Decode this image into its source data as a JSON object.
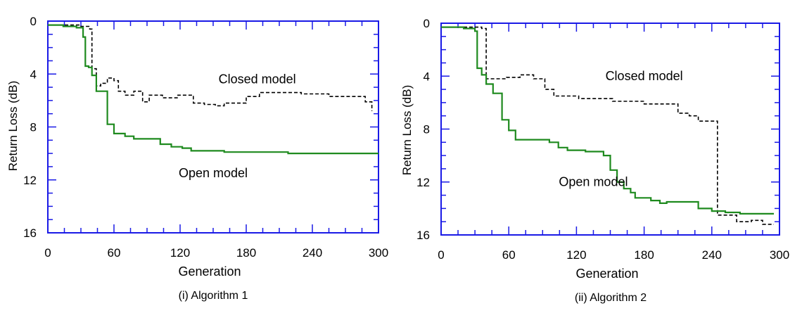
{
  "chart_data": [
    {
      "type": "line",
      "caption": "(i) Algorithm 1",
      "xlabel": "Generation",
      "ylabel": "Return Loss (dB)",
      "xlim": [
        0,
        300
      ],
      "ylim": [
        0,
        16
      ],
      "y_inverted": true,
      "xticks": [
        "0",
        "60",
        "120",
        "180",
        "240",
        "300"
      ],
      "yticks": [
        "0",
        "4",
        "8",
        "12",
        "16"
      ],
      "annotations": [
        {
          "text": "Closed model",
          "x": 190,
          "y": 4.7
        },
        {
          "text": "Open model",
          "x": 150,
          "y": 11.8
        }
      ],
      "series": [
        {
          "name": "Closed model",
          "color": "#000000",
          "dash": true,
          "points": [
            [
              0,
              0.3
            ],
            [
              30,
              0.3
            ],
            [
              30,
              0.4
            ],
            [
              38,
              0.4
            ],
            [
              38,
              0.6
            ],
            [
              40,
              0.6
            ],
            [
              40,
              3.6
            ],
            [
              44,
              3.6
            ],
            [
              44,
              4.9
            ],
            [
              48,
              4.9
            ],
            [
              48,
              4.7
            ],
            [
              54,
              4.7
            ],
            [
              54,
              4.3
            ],
            [
              60,
              4.3
            ],
            [
              60,
              4.5
            ],
            [
              64,
              4.5
            ],
            [
              64,
              5.3
            ],
            [
              70,
              5.3
            ],
            [
              70,
              5.6
            ],
            [
              78,
              5.6
            ],
            [
              78,
              5.3
            ],
            [
              86,
              5.3
            ],
            [
              86,
              6.1
            ],
            [
              92,
              6.1
            ],
            [
              92,
              5.6
            ],
            [
              104,
              5.6
            ],
            [
              104,
              5.8
            ],
            [
              118,
              5.8
            ],
            [
              118,
              5.6
            ],
            [
              132,
              5.6
            ],
            [
              132,
              6.2
            ],
            [
              142,
              6.2
            ],
            [
              142,
              6.3
            ],
            [
              152,
              6.3
            ],
            [
              152,
              6.4
            ],
            [
              160,
              6.4
            ],
            [
              160,
              6.2
            ],
            [
              180,
              6.2
            ],
            [
              180,
              5.7
            ],
            [
              192,
              5.7
            ],
            [
              192,
              5.4
            ],
            [
              230,
              5.4
            ],
            [
              230,
              5.5
            ],
            [
              255,
              5.5
            ],
            [
              255,
              5.7
            ],
            [
              288,
              5.7
            ],
            [
              288,
              6.1
            ],
            [
              294,
              6.1
            ],
            [
              294,
              6.8
            ]
          ]
        },
        {
          "name": "Open model",
          "color": "#1e8a1e",
          "dash": false,
          "points": [
            [
              0,
              0.3
            ],
            [
              14,
              0.3
            ],
            [
              14,
              0.4
            ],
            [
              26,
              0.4
            ],
            [
              26,
              0.5
            ],
            [
              32,
              0.5
            ],
            [
              32,
              1.2
            ],
            [
              34,
              1.2
            ],
            [
              34,
              3.4
            ],
            [
              37,
              3.4
            ],
            [
              37,
              3.5
            ],
            [
              40,
              3.5
            ],
            [
              40,
              4.1
            ],
            [
              44,
              4.1
            ],
            [
              44,
              5.3
            ],
            [
              54,
              5.3
            ],
            [
              54,
              7.8
            ],
            [
              60,
              7.8
            ],
            [
              60,
              8.5
            ],
            [
              70,
              8.5
            ],
            [
              70,
              8.7
            ],
            [
              78,
              8.7
            ],
            [
              78,
              8.9
            ],
            [
              102,
              8.9
            ],
            [
              102,
              9.3
            ],
            [
              112,
              9.3
            ],
            [
              112,
              9.5
            ],
            [
              122,
              9.5
            ],
            [
              122,
              9.6
            ],
            [
              130,
              9.6
            ],
            [
              130,
              9.8
            ],
            [
              160,
              9.8
            ],
            [
              160,
              9.9
            ],
            [
              218,
              9.9
            ],
            [
              218,
              10.0
            ],
            [
              300,
              10.0
            ]
          ]
        }
      ]
    },
    {
      "type": "line",
      "caption": "(ii) Algorithm 2",
      "xlabel": "Generation",
      "ylabel": "Return Loss (dB)",
      "xlim": [
        0,
        300
      ],
      "ylim": [
        0,
        16
      ],
      "y_inverted": true,
      "xticks": [
        "0",
        "60",
        "120",
        "180",
        "240",
        "300"
      ],
      "yticks": [
        "0",
        "4",
        "8",
        "12",
        "16"
      ],
      "annotations": [
        {
          "text": "Closed model",
          "x": 180,
          "y": 4.3
        },
        {
          "text": "Open model",
          "x": 135,
          "y": 12.3
        }
      ],
      "series": [
        {
          "name": "Closed model",
          "color": "#000000",
          "dash": true,
          "points": [
            [
              0,
              0.3
            ],
            [
              36,
              0.3
            ],
            [
              36,
              0.4
            ],
            [
              40,
              0.4
            ],
            [
              40,
              4.2
            ],
            [
              58,
              4.2
            ],
            [
              58,
              4.1
            ],
            [
              70,
              4.1
            ],
            [
              70,
              3.9
            ],
            [
              82,
              3.9
            ],
            [
              82,
              4.2
            ],
            [
              92,
              4.2
            ],
            [
              92,
              5.0
            ],
            [
              100,
              5.0
            ],
            [
              100,
              5.5
            ],
            [
              122,
              5.5
            ],
            [
              122,
              5.7
            ],
            [
              152,
              5.7
            ],
            [
              152,
              5.9
            ],
            [
              180,
              5.9
            ],
            [
              180,
              6.1
            ],
            [
              210,
              6.1
            ],
            [
              210,
              6.8
            ],
            [
              220,
              6.8
            ],
            [
              220,
              7.0
            ],
            [
              228,
              7.0
            ],
            [
              228,
              7.4
            ],
            [
              245,
              7.4
            ],
            [
              245,
              14.5
            ],
            [
              262,
              14.5
            ],
            [
              262,
              15.0
            ],
            [
              275,
              15.0
            ],
            [
              275,
              14.9
            ],
            [
              285,
              14.9
            ],
            [
              285,
              15.2
            ],
            [
              295,
              15.2
            ]
          ]
        },
        {
          "name": "Open model",
          "color": "#1e8a1e",
          "dash": false,
          "points": [
            [
              0,
              0.3
            ],
            [
              20,
              0.3
            ],
            [
              20,
              0.4
            ],
            [
              30,
              0.4
            ],
            [
              30,
              0.6
            ],
            [
              32,
              0.6
            ],
            [
              32,
              3.4
            ],
            [
              36,
              3.4
            ],
            [
              36,
              3.9
            ],
            [
              40,
              3.9
            ],
            [
              40,
              4.6
            ],
            [
              46,
              4.6
            ],
            [
              46,
              5.3
            ],
            [
              54,
              5.3
            ],
            [
              54,
              7.3
            ],
            [
              60,
              7.3
            ],
            [
              60,
              8.1
            ],
            [
              66,
              8.1
            ],
            [
              66,
              8.8
            ],
            [
              96,
              8.8
            ],
            [
              96,
              9.0
            ],
            [
              104,
              9.0
            ],
            [
              104,
              9.4
            ],
            [
              112,
              9.4
            ],
            [
              112,
              9.6
            ],
            [
              128,
              9.6
            ],
            [
              128,
              9.7
            ],
            [
              144,
              9.7
            ],
            [
              144,
              10.0
            ],
            [
              150,
              10.0
            ],
            [
              150,
              11.1
            ],
            [
              156,
              11.1
            ],
            [
              156,
              12.0
            ],
            [
              162,
              12.0
            ],
            [
              162,
              12.5
            ],
            [
              168,
              12.5
            ],
            [
              168,
              12.8
            ],
            [
              172,
              12.8
            ],
            [
              172,
              13.2
            ],
            [
              186,
              13.2
            ],
            [
              186,
              13.4
            ],
            [
              194,
              13.4
            ],
            [
              194,
              13.6
            ],
            [
              200,
              13.6
            ],
            [
              200,
              13.5
            ],
            [
              228,
              13.5
            ],
            [
              228,
              14.0
            ],
            [
              240,
              14.0
            ],
            [
              240,
              14.2
            ],
            [
              252,
              14.2
            ],
            [
              252,
              14.3
            ],
            [
              265,
              14.3
            ],
            [
              265,
              14.4
            ],
            [
              295,
              14.4
            ]
          ]
        }
      ]
    }
  ]
}
